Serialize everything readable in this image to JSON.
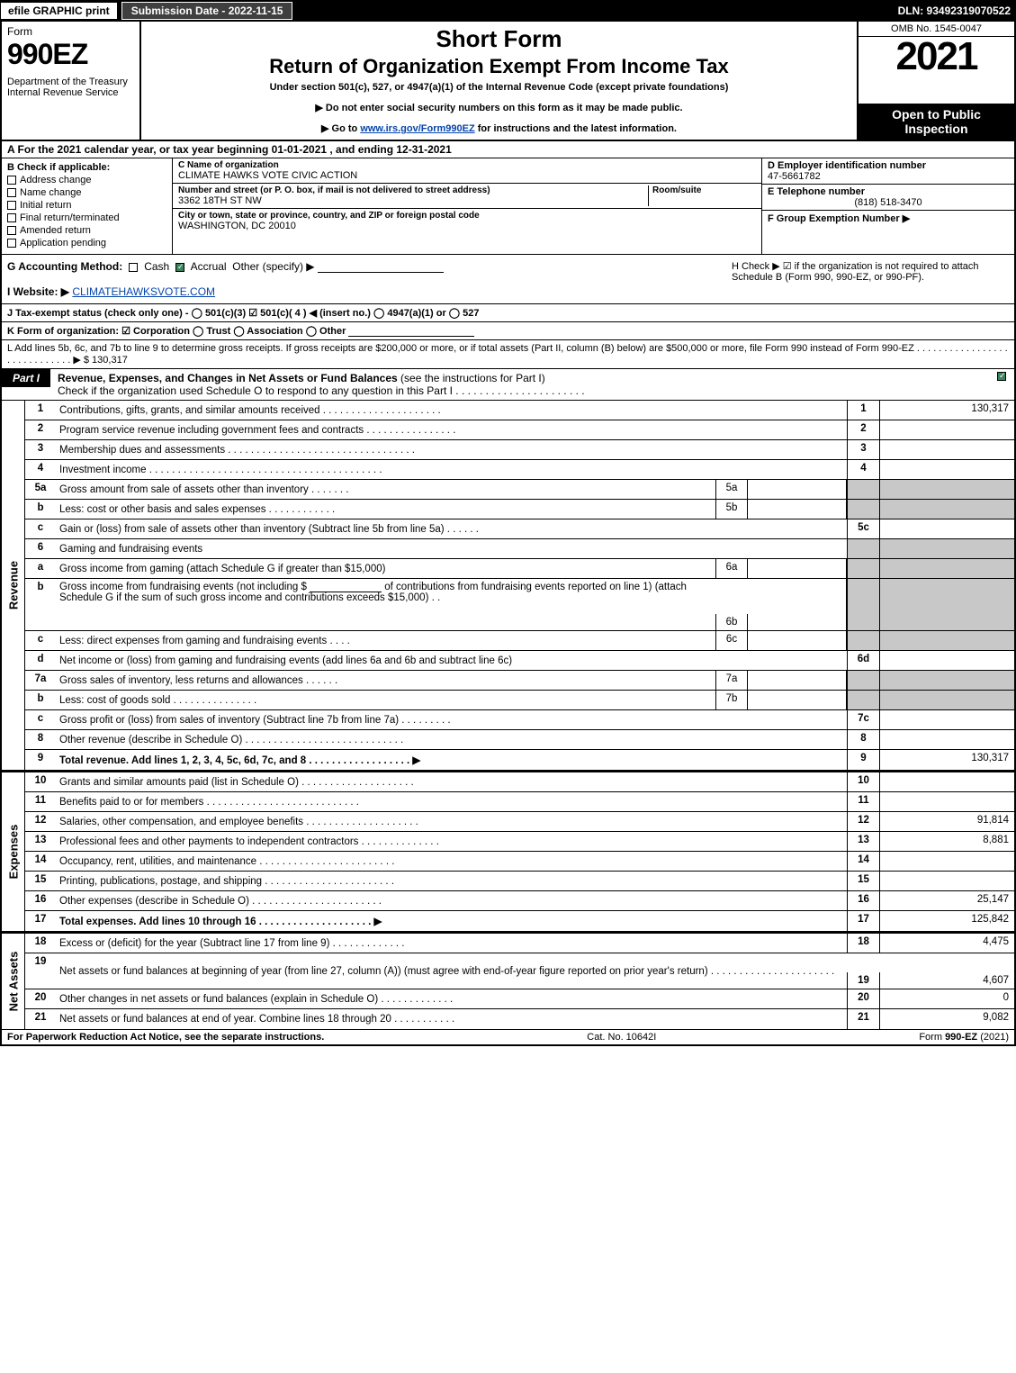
{
  "topbar": {
    "efile": "efile GRAPHIC print",
    "subdate": "Submission Date - 2022-11-15",
    "dln": "DLN: 93492319070522"
  },
  "header": {
    "form_word": "Form",
    "form_num": "990EZ",
    "dept": "Department of the Treasury\nInternal Revenue Service",
    "short": "Short Form",
    "title2": "Return of Organization Exempt From Income Tax",
    "subtitle": "Under section 501(c), 527, or 4947(a)(1) of the Internal Revenue Code (except private foundations)",
    "instr1": "▶ Do not enter social security numbers on this form as it may be made public.",
    "instr2_pre": "▶ Go to ",
    "instr2_link": "www.irs.gov/Form990EZ",
    "instr2_post": " for instructions and the latest information.",
    "omb": "OMB No. 1545-0047",
    "year": "2021",
    "inspect": "Open to Public Inspection"
  },
  "row_a": "A  For the 2021 calendar year, or tax year beginning 01-01-2021 , and ending 12-31-2021",
  "section_b": {
    "label": "B  Check if applicable:",
    "opts": [
      "Address change",
      "Name change",
      "Initial return",
      "Final return/terminated",
      "Amended return",
      "Application pending"
    ]
  },
  "section_c": {
    "name_lab": "C Name of organization",
    "name_val": "CLIMATE HAWKS VOTE CIVIC ACTION",
    "addr_lab": "Number and street (or P. O. box, if mail is not delivered to street address)",
    "addr_val": "3362 18TH ST NW",
    "room_lab": "Room/suite",
    "city_lab": "City or town, state or province, country, and ZIP or foreign postal code",
    "city_val": "WASHINGTON, DC  20010"
  },
  "section_def": {
    "d_lab": "D Employer identification number",
    "d_val": "47-5661782",
    "e_lab": "E Telephone number",
    "e_val": "(818) 518-3470",
    "f_lab": "F Group Exemption Number  ▶"
  },
  "row_g": {
    "label": "G Accounting Method:",
    "cash": "Cash",
    "accrual": "Accrual",
    "other": "Other (specify) ▶"
  },
  "row_h": "H  Check ▶  ☑  if the organization is not required to attach Schedule B (Form 990, 990-EZ, or 990-PF).",
  "row_i": {
    "label": "I Website: ▶",
    "val": "CLIMATEHAWKSVOTE.COM"
  },
  "row_j": "J Tax-exempt status (check only one) -  ◯ 501(c)(3)  ☑ 501(c)( 4 ) ◀ (insert no.)  ◯ 4947(a)(1) or  ◯ 527",
  "row_k": "K Form of organization:   ☑ Corporation   ◯ Trust   ◯ Association   ◯ Other",
  "row_l": {
    "text": "L Add lines 5b, 6c, and 7b to line 9 to determine gross receipts. If gross receipts are $200,000 or more, or if total assets (Part II, column (B) below) are $500,000 or more, file Form 990 instead of Form 990-EZ .  .  .  .  .  .  .  .  .  .  .  .  .  .  .  .  .  .  .  .  .  .  .  .  .  .  .  .  . ▶ $",
    "amount": "130,317"
  },
  "part1": {
    "tab": "Part I",
    "title_bold": "Revenue, Expenses, and Changes in Net Assets or Fund Balances",
    "title_rest": " (see the instructions for Part I)",
    "subtitle": "Check if the organization used Schedule O to respond to any question in this Part I .  .  .  .  .  .  .  .  .  .  .  .  .  .  .  .  .  .  .  .  .  ."
  },
  "side_labels": {
    "rev": "Revenue",
    "exp": "Expenses",
    "na": "Net Assets"
  },
  "revenue_lines": [
    {
      "n": "1",
      "d": "Contributions, gifts, grants, and similar amounts received .  .  .  .  .  .  .  .  .  .  .  .  .  .  .  .  .  .  .  .  .",
      "r": "1",
      "a": "130,317"
    },
    {
      "n": "2",
      "d": "Program service revenue including government fees and contracts .  .  .  .  .  .  .  .  .  .  .  .  .  .  .  .",
      "r": "2",
      "a": ""
    },
    {
      "n": "3",
      "d": "Membership dues and assessments .  .  .  .  .  .  .  .  .  .  .  .  .  .  .  .  .  .  .  .  .  .  .  .  .  .  .  .  .  .  .  .  .",
      "r": "3",
      "a": ""
    },
    {
      "n": "4",
      "d": "Investment income .  .  .  .  .  .  .  .  .  .  .  .  .  .  .  .  .  .  .  .  .  .  .  .  .  .  .  .  .  .  .  .  .  .  .  .  .  .  .  .  .",
      "r": "4",
      "a": ""
    }
  ],
  "sub_lines": {
    "l5a": {
      "n": "5a",
      "d": "Gross amount from sale of assets other than inventory .  .  .  .  .  .  .",
      "sc": "5a"
    },
    "l5b": {
      "n": "b",
      "d": "Less: cost or other basis and sales expenses .  .  .  .  .  .  .  .  .  .  .  .",
      "sc": "5b"
    },
    "l5c": {
      "n": "c",
      "d": "Gain or (loss) from sale of assets other than inventory (Subtract line 5b from line 5a) .  .  .  .  .  .",
      "r": "5c"
    },
    "l6": {
      "n": "6",
      "d": "Gaming and fundraising events"
    },
    "l6a": {
      "n": "a",
      "d": "Gross income from gaming (attach Schedule G if greater than $15,000)",
      "sc": "6a"
    },
    "l6b": {
      "n": "b",
      "d1": "Gross income from fundraising events (not including $",
      "d2": "of contributions from fundraising events reported on line 1) (attach Schedule G if the sum of such gross income and contributions exceeds $15,000)   .  .",
      "sc": "6b"
    },
    "l6c": {
      "n": "c",
      "d": "Less: direct expenses from gaming and fundraising events   .  .  .  .",
      "sc": "6c"
    },
    "l6d": {
      "n": "d",
      "d": "Net income or (loss) from gaming and fundraising events (add lines 6a and 6b and subtract line 6c)",
      "r": "6d"
    },
    "l7a": {
      "n": "7a",
      "d": "Gross sales of inventory, less returns and allowances .  .  .  .  .  .",
      "sc": "7a"
    },
    "l7b": {
      "n": "b",
      "d": "Less: cost of goods sold     .  .  .  .  .  .  .  .  .  .  .  .  .  .  .",
      "sc": "7b"
    },
    "l7c": {
      "n": "c",
      "d": "Gross profit or (loss) from sales of inventory (Subtract line 7b from line 7a) .  .  .  .  .  .  .  .  .",
      "r": "7c"
    },
    "l8": {
      "n": "8",
      "d": "Other revenue (describe in Schedule O) .  .  .  .  .  .  .  .  .  .  .  .  .  .  .  .  .  .  .  .  .  .  .  .  .  .  .  .",
      "r": "8"
    },
    "l9": {
      "n": "9",
      "d": "Total revenue. Add lines 1, 2, 3, 4, 5c, 6d, 7c, and 8  .  .  .  .  .  .  .  .  .  .  .  .  .  .  .  .  .  .  ▶",
      "r": "9",
      "a": "130,317",
      "bold": true
    }
  },
  "expense_lines": [
    {
      "n": "10",
      "d": "Grants and similar amounts paid (list in Schedule O) .  .  .  .  .  .  .  .  .  .  .  .  .  .  .  .  .  .  .  .",
      "r": "10",
      "a": ""
    },
    {
      "n": "11",
      "d": "Benefits paid to or for members      .  .  .  .  .  .  .  .  .  .  .  .  .  .  .  .  .  .  .  .  .  .  .  .  .  .  .",
      "r": "11",
      "a": ""
    },
    {
      "n": "12",
      "d": "Salaries, other compensation, and employee benefits .  .  .  .  .  .  .  .  .  .  .  .  .  .  .  .  .  .  .  .",
      "r": "12",
      "a": "91,814"
    },
    {
      "n": "13",
      "d": "Professional fees and other payments to independent contractors .  .  .  .  .  .  .  .  .  .  .  .  .  .",
      "r": "13",
      "a": "8,881"
    },
    {
      "n": "14",
      "d": "Occupancy, rent, utilities, and maintenance .  .  .  .  .  .  .  .  .  .  .  .  .  .  .  .  .  .  .  .  .  .  .  .",
      "r": "14",
      "a": ""
    },
    {
      "n": "15",
      "d": "Printing, publications, postage, and shipping .  .  .  .  .  .  .  .  .  .  .  .  .  .  .  .  .  .  .  .  .  .  .",
      "r": "15",
      "a": ""
    },
    {
      "n": "16",
      "d": "Other expenses (describe in Schedule O)     .  .  .  .  .  .  .  .  .  .  .  .  .  .  .  .  .  .  .  .  .  .  .",
      "r": "16",
      "a": "25,147"
    },
    {
      "n": "17",
      "d": "Total expenses. Add lines 10 through 16      .  .  .  .  .  .  .  .  .  .  .  .  .  .  .  .  .  .  .  .  ▶",
      "r": "17",
      "a": "125,842",
      "bold": true
    }
  ],
  "netasset_lines": [
    {
      "n": "18",
      "d": "Excess or (deficit) for the year (Subtract line 17 from line 9)      .  .  .  .  .  .  .  .  .  .  .  .  .",
      "r": "18",
      "a": "4,475"
    },
    {
      "n": "19",
      "d": "Net assets or fund balances at beginning of year (from line 27, column (A)) (must agree with end-of-year figure reported on prior year's return) .  .  .  .  .  .  .  .  .  .  .  .  .  .  .  .  .  .  .  .  .  .",
      "r": "19",
      "a": "4,607"
    },
    {
      "n": "20",
      "d": "Other changes in net assets or fund balances (explain in Schedule O) .  .  .  .  .  .  .  .  .  .  .  .  .",
      "r": "20",
      "a": "0"
    },
    {
      "n": "21",
      "d": "Net assets or fund balances at end of year. Combine lines 18 through 20 .  .  .  .  .  .  .  .  .  .  .",
      "r": "21",
      "a": "9,082"
    }
  ],
  "footer": {
    "left": "For Paperwork Reduction Act Notice, see the separate instructions.",
    "mid": "Cat. No. 10642I",
    "right_pre": "Form ",
    "right_bold": "990-EZ",
    "right_post": " (2021)"
  }
}
